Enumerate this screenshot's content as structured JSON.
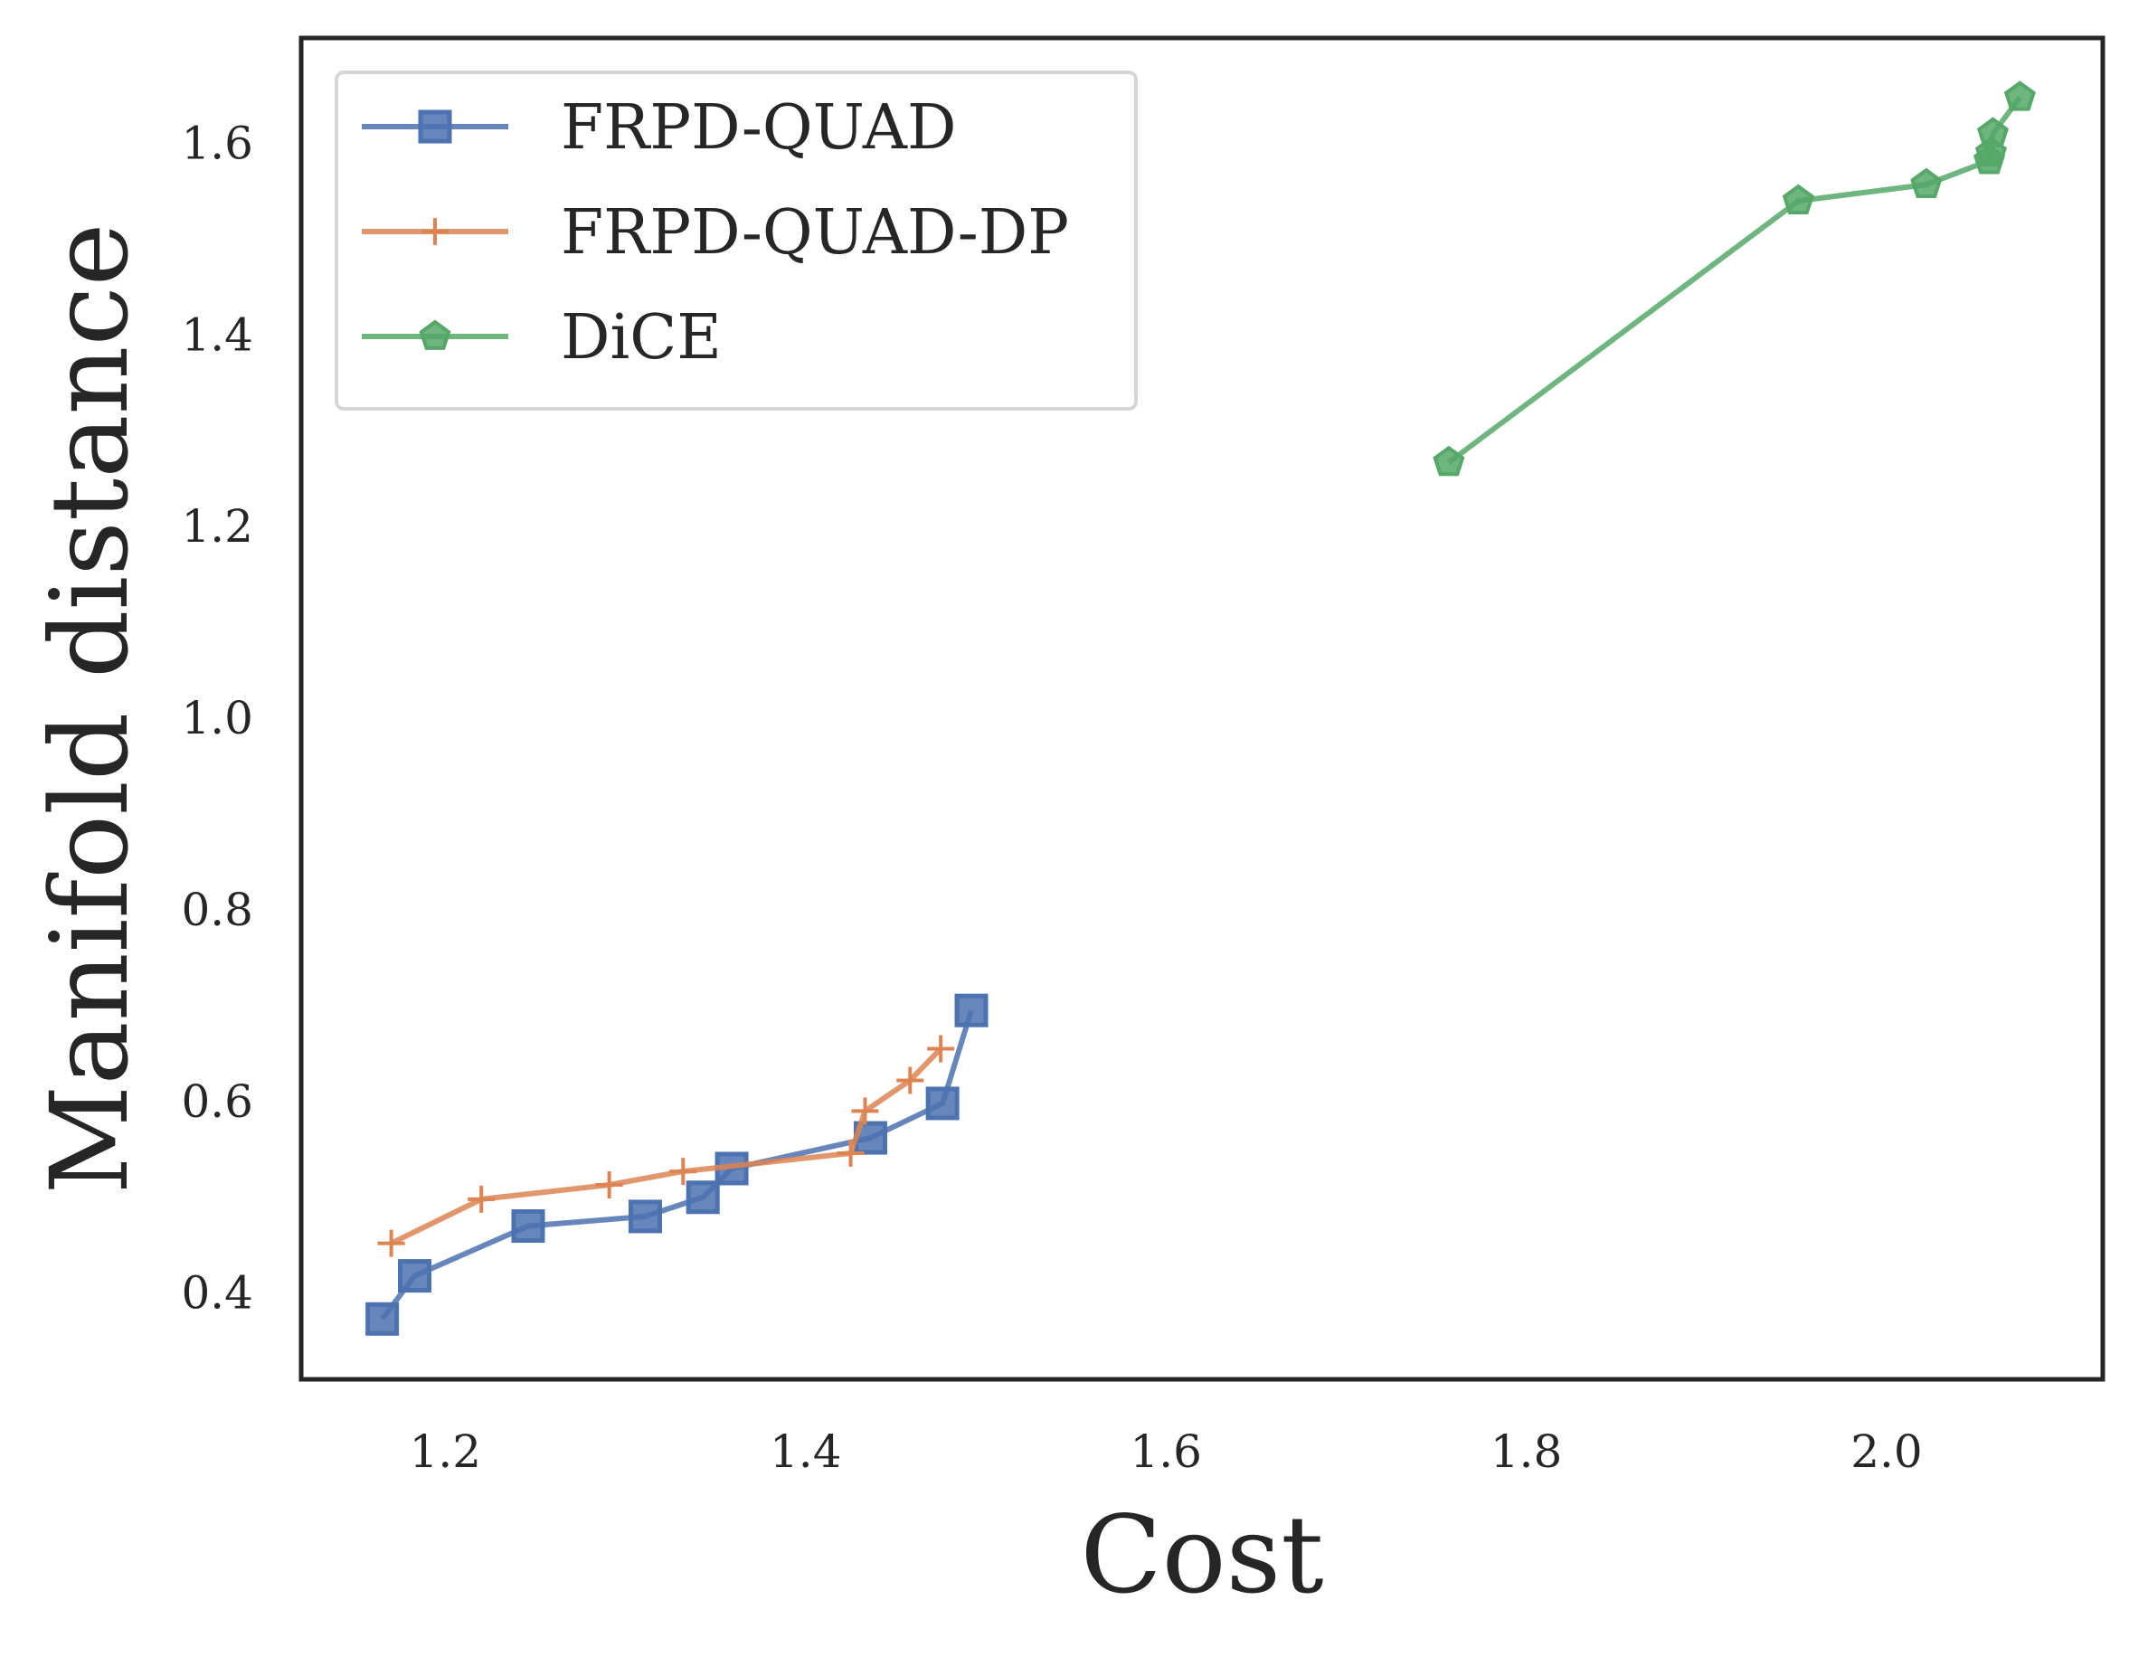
{
  "chart_data": {
    "type": "line",
    "xlabel": "Cost",
    "ylabel": "Manifold distance",
    "xlim": [
      1.12,
      2.12
    ],
    "ylim": [
      0.31,
      1.71
    ],
    "xticks": [
      1.2,
      1.4,
      1.6,
      1.8,
      2.0
    ],
    "xtick_labels": [
      "1.2",
      "1.4",
      "1.6",
      "1.8",
      "2.0"
    ],
    "yticks": [
      0.4,
      0.6,
      0.8,
      1.0,
      1.2,
      1.4,
      1.6
    ],
    "ytick_labels": [
      "0.4",
      "0.6",
      "0.8",
      "1.0",
      "1.2",
      "1.4",
      "1.6"
    ],
    "grid": false,
    "legend_position": "top-left",
    "series": [
      {
        "name": "FRPD-QUAD",
        "color": "#4C72B0",
        "marker": "square",
        "x": [
          1.165,
          1.183,
          1.246,
          1.311,
          1.343,
          1.359,
          1.436,
          1.476,
          1.492
        ],
        "y": [
          0.373,
          0.418,
          0.47,
          0.48,
          0.5,
          0.53,
          0.562,
          0.598,
          0.695
        ]
      },
      {
        "name": "FRPD-QUAD-DP",
        "color": "#DD8452",
        "marker": "plus",
        "x": [
          1.17,
          1.22,
          1.291,
          1.332,
          1.425,
          1.433,
          1.458,
          1.475
        ],
        "y": [
          0.452,
          0.498,
          0.513,
          0.527,
          0.546,
          0.59,
          0.622,
          0.655
        ]
      },
      {
        "name": "DiCE",
        "color": "#55A868",
        "marker": "pentagon",
        "x": [
          1.757,
          1.951,
          2.022,
          2.057,
          2.058,
          2.059,
          2.074
        ],
        "y": [
          1.267,
          1.54,
          1.557,
          1.582,
          1.59,
          1.61,
          1.648
        ]
      }
    ]
  }
}
